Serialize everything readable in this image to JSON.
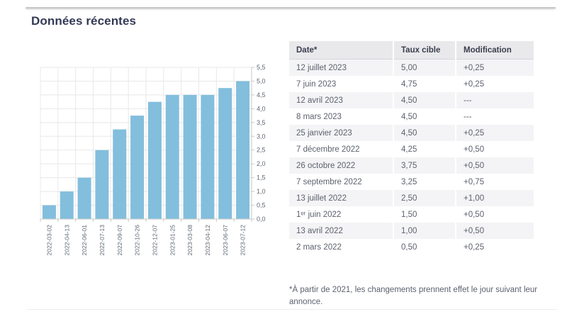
{
  "page": {
    "title": "Données récentes"
  },
  "chart_data": {
    "type": "bar",
    "title": "",
    "categories": [
      "2022-03-02",
      "2022-04-13",
      "2022-06-01",
      "2022-07-13",
      "2022-09-07",
      "2022-10-26",
      "2022-12-07",
      "2023-01-25",
      "2023-03-08",
      "2023-04-12",
      "2023-06-07",
      "2023-07-12"
    ],
    "values": [
      0.5,
      1.0,
      1.5,
      2.5,
      3.25,
      3.75,
      4.25,
      4.5,
      4.5,
      4.5,
      4.75,
      5.0
    ],
    "xlabel": "",
    "ylabel": "",
    "ylim": [
      0,
      5.5
    ],
    "ytick_step": 0.5,
    "yaxis_side": "right",
    "decimal_separator": ",",
    "grid": true,
    "legend": false
  },
  "table": {
    "headers": [
      "Date*",
      "Taux cible",
      "Modification"
    ],
    "rows": [
      [
        "12 juillet 2023",
        "5,00",
        "+0,25"
      ],
      [
        "7 juin 2023",
        "4,75",
        "+0,25"
      ],
      [
        "12 avril 2023",
        "4,50",
        "---"
      ],
      [
        "8 mars 2023",
        "4,50",
        "---"
      ],
      [
        "25 janvier 2023",
        "4,50",
        "+0,25"
      ],
      [
        "7 décembre 2022",
        "4,25",
        "+0,50"
      ],
      [
        "26 octobre 2022",
        "3,75",
        "+0,50"
      ],
      [
        "7 septembre 2022",
        "3,25",
        "+0,75"
      ],
      [
        "13 juillet 2022",
        "2,50",
        "+1,00"
      ],
      [
        "1ᵉʳ juin 2022",
        "1,50",
        "+0,50"
      ],
      [
        "13 avril 2022",
        "1,00",
        "+0,50"
      ],
      [
        "2 mars 2022",
        "0,50",
        "+0,25"
      ]
    ],
    "footnote": "*À partir de 2021, les changements prennent effet le jour suivant leur annonce."
  },
  "colors": {
    "bar": "#83bedd",
    "title_text": "#333a56",
    "body_text": "#5d616e",
    "header_bg": "#e9e9ec",
    "row_alt_bg": "#f4f4f6",
    "grid_line": "#e8e8e8",
    "axis_line": "#c9c9c9",
    "axis_label": "#5f6873"
  }
}
